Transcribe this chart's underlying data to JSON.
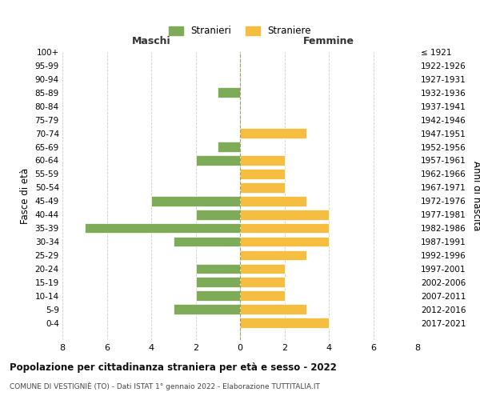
{
  "age_groups": [
    "100+",
    "95-99",
    "90-94",
    "85-89",
    "80-84",
    "75-79",
    "70-74",
    "65-69",
    "60-64",
    "55-59",
    "50-54",
    "45-49",
    "40-44",
    "35-39",
    "30-34",
    "25-29",
    "20-24",
    "15-19",
    "10-14",
    "5-9",
    "0-4"
  ],
  "birth_years": [
    "≤ 1921",
    "1922-1926",
    "1927-1931",
    "1932-1936",
    "1937-1941",
    "1942-1946",
    "1947-1951",
    "1952-1956",
    "1957-1961",
    "1962-1966",
    "1967-1971",
    "1972-1976",
    "1977-1981",
    "1982-1986",
    "1987-1991",
    "1992-1996",
    "1997-2001",
    "2002-2006",
    "2007-2011",
    "2012-2016",
    "2017-2021"
  ],
  "males": [
    0,
    0,
    0,
    1,
    0,
    0,
    0,
    1,
    2,
    0,
    0,
    4,
    2,
    7,
    3,
    0,
    2,
    2,
    2,
    3,
    0
  ],
  "females": [
    0,
    0,
    0,
    0,
    0,
    0,
    3,
    0,
    2,
    2,
    2,
    3,
    4,
    4,
    4,
    3,
    2,
    2,
    2,
    3,
    4
  ],
  "male_color": "#7dab57",
  "female_color": "#f5be41",
  "title": "Popolazione per cittadinanza straniera per età e sesso - 2022",
  "subtitle": "COMUNE DI VESTIGNIÈ (TO) - Dati ISTAT 1° gennaio 2022 - Elaborazione TUTTITALIA.IT",
  "legend_male": "Stranieri",
  "legend_female": "Straniere",
  "xlabel_left": "Maschi",
  "xlabel_right": "Femmine",
  "ylabel_left": "Fasce di età",
  "ylabel_right": "Anni di nascita",
  "xlim": 8,
  "background_color": "#ffffff",
  "grid_color": "#cccccc"
}
